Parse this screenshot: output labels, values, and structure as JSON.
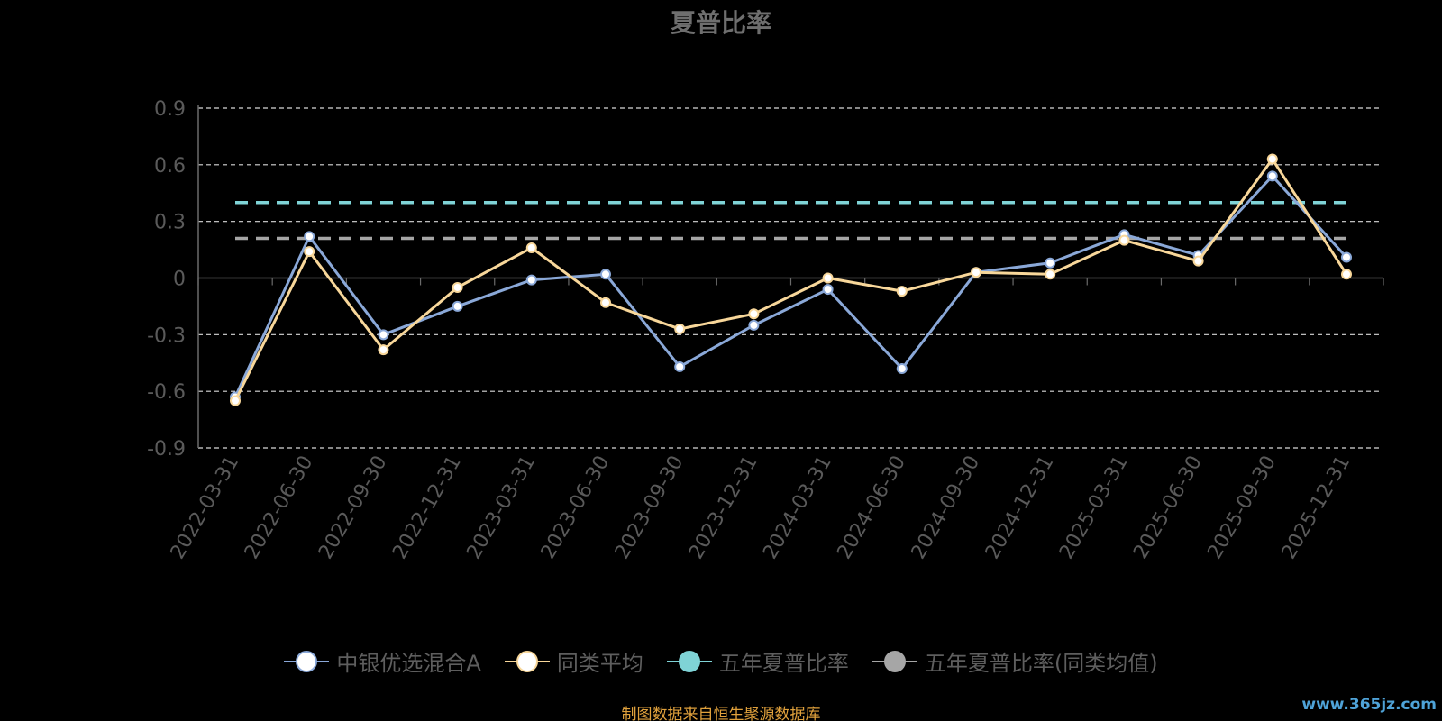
{
  "chart_data": {
    "type": "line",
    "title": "夏普比率",
    "xlabel": "",
    "ylabel": "",
    "categories": [
      "2022-03-31",
      "2022-06-30",
      "2022-09-30",
      "2022-12-31",
      "2023-03-31",
      "2023-06-30",
      "2023-09-30",
      "2023-12-31",
      "2024-03-31",
      "2024-06-30",
      "2024-09-30",
      "2024-12-31",
      "2025-03-31",
      "2025-06-30",
      "2025-09-30",
      "2025-12-31"
    ],
    "y_ticks": [
      "0.9",
      "0.6",
      "0.3",
      "0",
      "-0.3",
      "-0.6",
      "-0.9"
    ],
    "ylim": [
      -0.9,
      0.9
    ],
    "grid": true,
    "legend_position": "bottom",
    "series": [
      {
        "name": "中银优选混合A",
        "color": "#8aa8d8",
        "values": [
          -0.63,
          0.22,
          -0.3,
          -0.15,
          -0.01,
          0.02,
          -0.47,
          -0.25,
          -0.06,
          -0.48,
          0.03,
          0.08,
          0.23,
          0.12,
          0.54,
          0.11
        ]
      },
      {
        "name": "同类平均",
        "color": "#f8d79a",
        "values": [
          -0.65,
          0.14,
          -0.38,
          -0.05,
          0.16,
          -0.13,
          -0.27,
          -0.19,
          0.0,
          -0.07,
          0.03,
          0.02,
          0.2,
          0.09,
          0.63,
          0.02
        ]
      },
      {
        "name": "五年夏普比率",
        "color": "#7fd3d6",
        "style": "dashed",
        "value": 0.4
      },
      {
        "name": "五年夏普比率(同类均值)",
        "color": "#a6a6a6",
        "style": "dashed",
        "value": 0.21
      }
    ]
  },
  "footer": {
    "source": "制图数据来自恒生聚源数据库",
    "watermark": "www.365jz.com"
  }
}
